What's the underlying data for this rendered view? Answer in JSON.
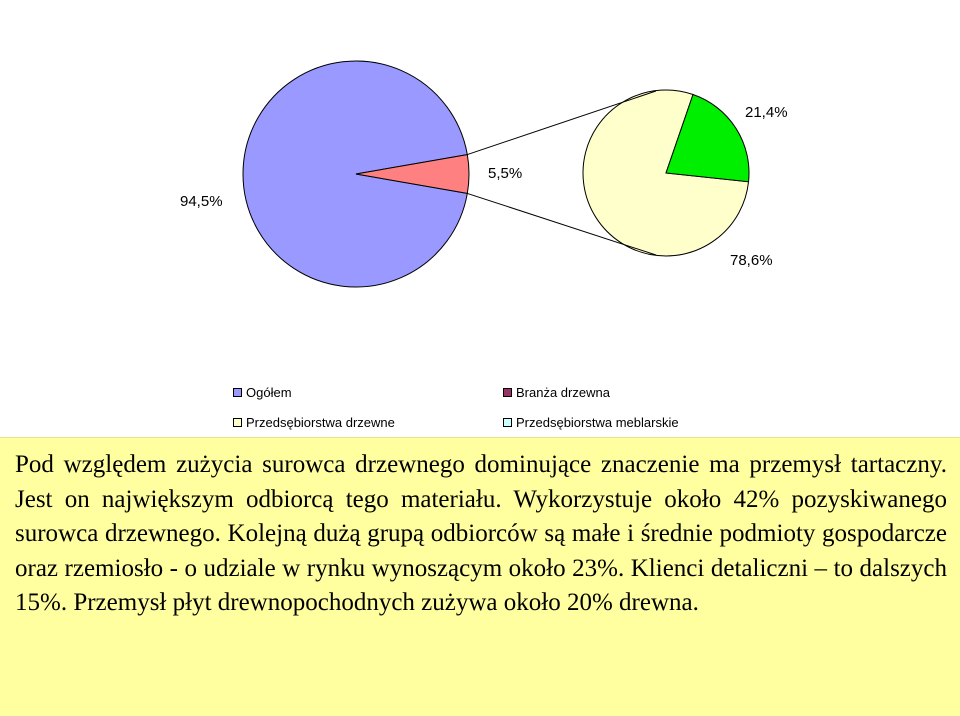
{
  "chart_data": {
    "type": "pie",
    "main_pie": {
      "slices": [
        {
          "label": "Ogółem",
          "value": 94.5,
          "value_label": "94,5%",
          "color": "#9999ff"
        },
        {
          "label": "Branża drzewna",
          "value": 5.5,
          "value_label": "5,5%",
          "color": "#ff8080"
        }
      ]
    },
    "secondary_pie": {
      "slices": [
        {
          "label": "Przedsębiorstwa meblarskie",
          "value": 21.4,
          "value_label": "21,4%",
          "color": "#00ee00"
        },
        {
          "label": "Przedsębiorstwa drzewne",
          "value": 78.6,
          "value_label": "78,6%",
          "color": "#ffffcc"
        }
      ]
    },
    "legend": {
      "placement": "bottom",
      "entries": [
        {
          "label": "Ogółem",
          "color": "#9999ff"
        },
        {
          "label": "Branża drzewna",
          "color": "#993366"
        },
        {
          "label": "Przedsębiorstwa drzewne",
          "color": "#ffffcc"
        },
        {
          "label": "Przedsębiorstwa meblarskie",
          "color": "#ccffff"
        }
      ]
    }
  },
  "body_text": "Pod względem zużycia surowca drzewnego dominujące znaczenie ma przemysł tartaczny. Jest on największym odbiorcą tego materiału. Wykorzystuje około 42% pozyskiwanego surowca drzewnego. Kolejną dużą grupą odbiorców są małe i średnie podmioty gospodarcze oraz rzemiosło - o udziale w rynku wynoszącym około 23%. Klienci detaliczni – to dalszych 15%. Przemysł płyt drewnopochodnych zużywa około 20% drewna."
}
